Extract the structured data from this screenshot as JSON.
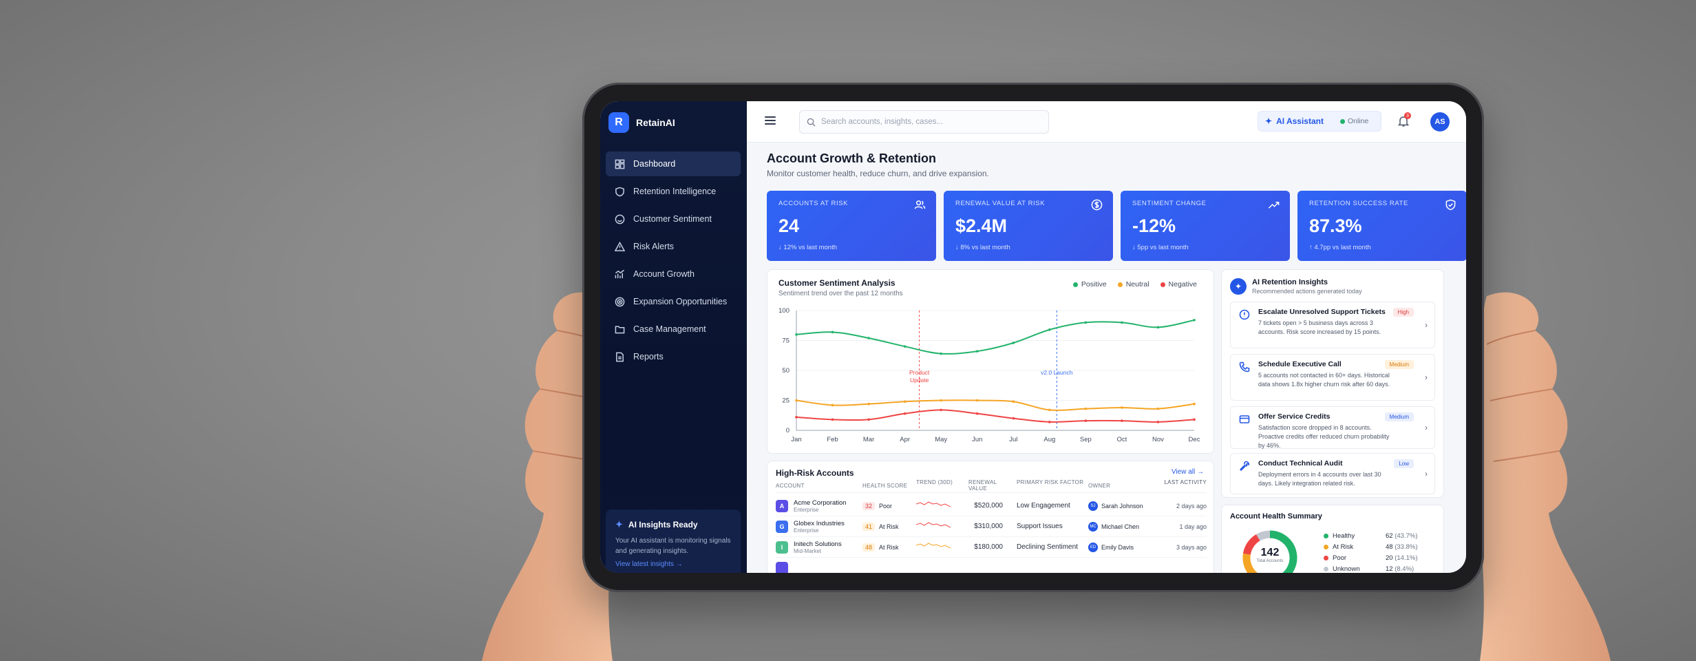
{
  "brand": {
    "logo_letter": "R",
    "name": "RetainAI"
  },
  "nav": [
    {
      "label": "Dashboard",
      "icon": "dashboard-icon",
      "active": true
    },
    {
      "label": "Retention Intelligence",
      "icon": "shield-icon"
    },
    {
      "label": "Customer Sentiment",
      "icon": "smile-icon"
    },
    {
      "label": "Risk Alerts",
      "icon": "alert-triangle-icon"
    },
    {
      "label": "Account Growth",
      "icon": "growth-chart-icon"
    },
    {
      "label": "Expansion Opportunities",
      "icon": "target-icon"
    },
    {
      "label": "Case Management",
      "icon": "folder-icon"
    },
    {
      "label": "Reports",
      "icon": "report-icon"
    }
  ],
  "ai_card": {
    "title": "AI Insights Ready",
    "body": "Your AI assistant is monitoring signals and generating insights.",
    "link": "View latest insights →"
  },
  "topbar": {
    "search_placeholder": "Search accounts, insights, cases...",
    "ai_assistant": "AI Assistant",
    "status": "Online",
    "notification_count": "3",
    "avatar": "AS"
  },
  "page": {
    "title": "Account Growth & Retention",
    "subtitle": "Monitor customer health, reduce churn, and drive expansion."
  },
  "kpis": [
    {
      "label": "ACCOUNTS AT RISK",
      "value": "24",
      "delta": "↓ 12% vs last month",
      "icon": "users-icon"
    },
    {
      "label": "RENEWAL VALUE AT RISK",
      "value": "$2.4M",
      "delta": "↓ 8% vs last month",
      "icon": "dollar-icon"
    },
    {
      "label": "SENTIMENT CHANGE",
      "value": "-12%",
      "delta": "↓ 5pp vs last month",
      "icon": "trend-up-icon"
    },
    {
      "label": "RETENTION SUCCESS RATE",
      "value": "87.3%",
      "delta": "↑ 4.7pp vs last month",
      "icon": "shield-check-icon"
    }
  ],
  "sentiment": {
    "title": "Customer Sentiment Analysis",
    "subtitle": "Sentiment trend over the past 12 months",
    "legend": [
      "Positive",
      "Neutral",
      "Negative"
    ],
    "colors": {
      "positive": "#22b36b",
      "neutral": "#f5a524",
      "negative": "#ef4444"
    }
  },
  "chart_data": {
    "type": "line",
    "title": "Customer Sentiment Analysis",
    "subtitle": "Sentiment trend over the past 12 months",
    "categories": [
      "Jan",
      "Feb",
      "Mar",
      "Apr",
      "May",
      "Jun",
      "Jul",
      "Aug",
      "Sep",
      "Oct",
      "Nov",
      "Dec"
    ],
    "ylim": [
      0,
      100
    ],
    "yticks": [
      0,
      25,
      50,
      75,
      100
    ],
    "series": [
      {
        "name": "Positive",
        "color": "#22b36b",
        "values": [
          80,
          82,
          77,
          70,
          64,
          66,
          73,
          84,
          90,
          90,
          86,
          92
        ]
      },
      {
        "name": "Neutral",
        "color": "#f5a524",
        "values": [
          25,
          21,
          22,
          24,
          25,
          25,
          24,
          17,
          18,
          19,
          18,
          22
        ]
      },
      {
        "name": "Negative",
        "color": "#ef4444",
        "values": [
          11,
          9,
          9,
          14,
          17,
          14,
          10,
          7,
          8,
          8,
          7,
          9
        ]
      }
    ],
    "annotations": [
      {
        "x": 3.4,
        "label_lines": [
          "Product",
          "Update"
        ],
        "color": "#ef4444"
      },
      {
        "x": 7.2,
        "label_lines": [
          "v2.0 Launch"
        ],
        "color": "#3b6ff0"
      }
    ]
  },
  "high_risk": {
    "title": "High-Risk Accounts",
    "view_all": "View all →",
    "columns": [
      "ACCOUNT",
      "HEALTH SCORE",
      "TREND (30D)",
      "RENEWAL VALUE",
      "PRIMARY RISK FACTOR",
      "OWNER",
      "LAST ACTIVITY"
    ],
    "rows": [
      {
        "name": "Acme Corporation",
        "tier": "Enterprise",
        "logo": "A",
        "logo_color": "#5b4ee6",
        "score": "32",
        "status": "Poor",
        "renewal": "$520,000",
        "risk": "Low Engagement",
        "owner": "Sarah Johnson",
        "owner_init": "SJ",
        "activity": "2 days ago",
        "trend_color": "#ef4444"
      },
      {
        "name": "Globex Industries",
        "tier": "Enterprise",
        "logo": "G",
        "logo_color": "#3b6ff0",
        "score": "41",
        "status": "At Risk",
        "renewal": "$310,000",
        "risk": "Support Issues",
        "owner": "Michael Chen",
        "owner_init": "MC",
        "activity": "1 day ago",
        "trend_color": "#ef4444"
      },
      {
        "name": "Initech Solutions",
        "tier": "Mid-Market",
        "logo": "I",
        "logo_color": "#4cbf8f",
        "score": "48",
        "status": "At Risk",
        "renewal": "$180,000",
        "risk": "Declining Sentiment",
        "owner": "Emily Davis",
        "owner_init": "ED",
        "activity": "3 days ago",
        "trend_color": "#f5a524"
      }
    ]
  },
  "insights": {
    "title": "AI Retention Insights",
    "subtitle": "Recommended actions generated today",
    "items": [
      {
        "title": "Escalate Unresolved Support Tickets",
        "text": "7 tickets open > 5 business days across 3 accounts. Risk score increased by 15 points.",
        "badge": "High",
        "icon": "alert-circle-icon"
      },
      {
        "title": "Schedule Executive Call",
        "text": "5 accounts not contacted in 60+ days. Historical data shows 1.8x higher churn risk after 60 days.",
        "badge": "Medium",
        "icon": "phone-icon"
      },
      {
        "title": "Offer Service Credits",
        "text": "Satisfaction score dropped in 8 accounts. Proactive credits offer reduced churn probability by 46%.",
        "badge": "Medium",
        "icon": "credit-card-icon"
      },
      {
        "title": "Conduct Technical Audit",
        "text": "Deployment errors in 4 accounts over last 30 days. Likely integration related risk.",
        "badge": "Low",
        "icon": "wrench-icon"
      }
    ]
  },
  "health": {
    "title": "Account Health Summary",
    "total": "142",
    "total_label": "Total Accounts",
    "segments": [
      {
        "name": "Healthy",
        "count": "62",
        "pct": "(43.7%)",
        "color": "#22b36b",
        "value": 62
      },
      {
        "name": "At Risk",
        "count": "48",
        "pct": "(33.8%)",
        "color": "#f5a524",
        "value": 48
      },
      {
        "name": "Poor",
        "count": "20",
        "pct": "(14.1%)",
        "color": "#ef4444",
        "value": 20
      },
      {
        "name": "Unknown",
        "count": "12",
        "pct": "(8.4%)",
        "color": "#c2c7d0",
        "value": 12
      }
    ]
  }
}
